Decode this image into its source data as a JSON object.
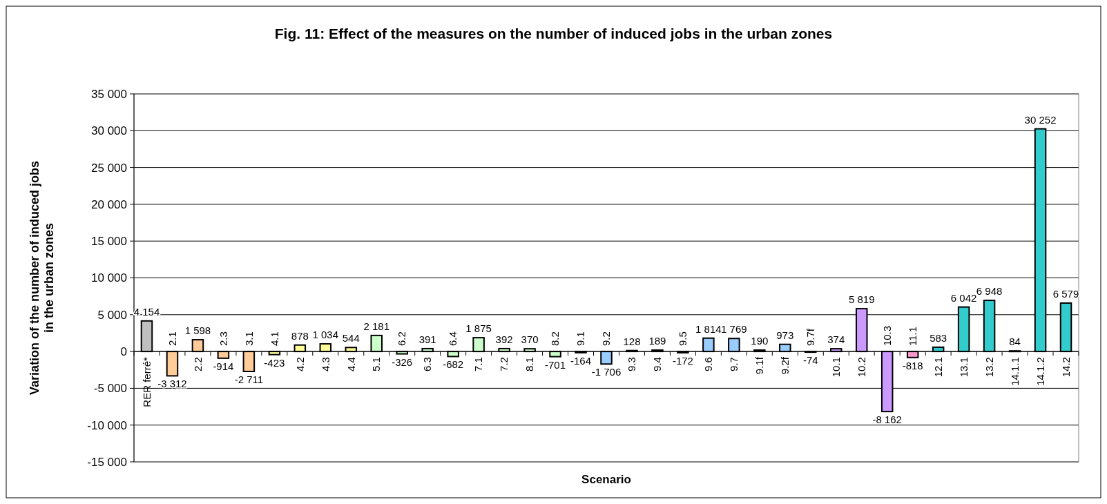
{
  "chart_data": {
    "type": "bar",
    "title": "Fig. 11: Effect of the measures on the number of induced jobs in the urban zones",
    "xlabel": "Scenario",
    "ylabel": "Variation of the number of induced jobs in the urban zones",
    "categories": [
      "RER ferré*",
      "2.1",
      "2.2",
      "2.3",
      "3.1",
      "4.1",
      "4.2",
      "4.3",
      "4.4",
      "5.1",
      "6.2",
      "6.3",
      "6.4",
      "7.1",
      "7.2",
      "8.1",
      "8.2",
      "9.1",
      "9.2",
      "9.3",
      "9.4",
      "9.5",
      "9.6",
      "9.7",
      "9.1f",
      "9.2f",
      "9.7f",
      "10.1",
      "10.2",
      "10.3",
      "11.1",
      "12.1",
      "13.1",
      "13.2",
      "14.1.1",
      "14.1.2",
      "14.2"
    ],
    "values": [
      4154,
      -3312,
      1598,
      -914,
      -2711,
      -423,
      878,
      1034,
      544,
      2181,
      -326,
      391,
      -682,
      1875,
      392,
      370,
      -701,
      -164,
      -1706,
      128,
      189,
      -172,
      1814,
      1769,
      190,
      973,
      -74,
      374,
      5819,
      -8162,
      -818,
      583,
      6042,
      6948,
      84,
      30252,
      6579
    ],
    "colors": [
      "#c0c0c0",
      "#ffcc99",
      "#ffcc99",
      "#ffcc99",
      "#ffcc99",
      "#ffff99",
      "#ffff99",
      "#ffff99",
      "#ffff99",
      "#ccffcc",
      "#ccffcc",
      "#ccffcc",
      "#ccffcc",
      "#ccffcc",
      "#ccffcc",
      "#ccffcc",
      "#ccffcc",
      "#99ccff",
      "#99ccff",
      "#99ccff",
      "#99ccff",
      "#99ccff",
      "#99ccff",
      "#99ccff",
      "#99ccff",
      "#99ccff",
      "#99ccff",
      "#cc99ff",
      "#cc99ff",
      "#cc99ff",
      "#ff99cc",
      "#33cccc",
      "#33cccc",
      "#33cccc",
      "#33cccc",
      "#33cccc",
      "#33cccc"
    ],
    "value_labels": [
      "4 154",
      "-3 312",
      "1 598",
      "-914",
      "-2 711",
      "-423",
      "878",
      "1 034",
      "544",
      "2 181",
      "-326",
      "391",
      "-682",
      "1 875",
      "392",
      "370",
      "-701",
      "-164",
      "-1 706",
      "128",
      "189",
      "-172",
      "1 814",
      "1 769",
      "190",
      "973",
      "-74",
      "374",
      "5 819",
      "-8 162",
      "-818",
      "583",
      "6 042",
      "6 948",
      "84",
      "30 252",
      "6 579"
    ],
    "ylim": [
      -15000,
      35000
    ],
    "yticks": [
      {
        "value": -15000,
        "label": "-15 000"
      },
      {
        "value": -10000,
        "label": "-10 000"
      },
      {
        "value": -5000,
        "label": "-5 000"
      },
      0,
      {
        "value": 5000,
        "label": "5 000"
      },
      {
        "value": 10000,
        "label": "10 000"
      },
      {
        "value": 15000,
        "label": "15 000"
      },
      {
        "value": 20000,
        "label": "20 000"
      },
      {
        "value": 25000,
        "label": "25 000"
      },
      {
        "value": 30000,
        "label": "30 000"
      },
      {
        "value": 35000,
        "label": "35 000"
      }
    ],
    "grid": "y"
  }
}
